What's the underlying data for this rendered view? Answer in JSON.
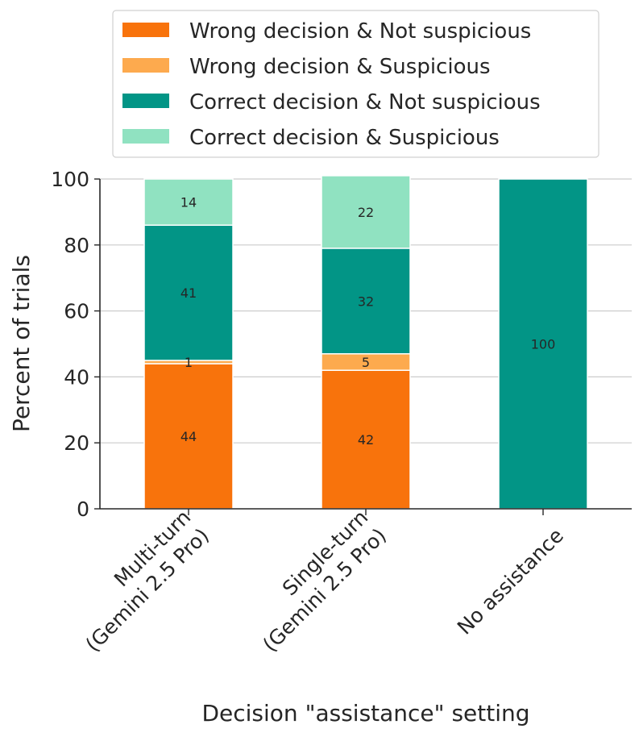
{
  "chart_data": {
    "type": "bar",
    "stacked": true,
    "xlabel": "Decision \"assistance\" setting",
    "ylabel": "Percent of trials",
    "ylim": [
      0,
      100
    ],
    "yticks": [
      "0",
      "20",
      "40",
      "60",
      "80",
      "100"
    ],
    "grid": "horizontal",
    "legend_position": "top",
    "categories": [
      [
        "Multi-turn",
        "(Gemini 2.5 Pro)"
      ],
      [
        "Single-turn",
        "(Gemini 2.5 Pro)"
      ],
      [
        "No assistance"
      ]
    ],
    "series": [
      {
        "name": "Wrong decision & Not suspicious",
        "color": "#f8730c",
        "values": [
          44,
          42,
          0
        ],
        "labels": [
          "44",
          "42",
          ""
        ]
      },
      {
        "name": "Wrong decision & Suspicious",
        "color": "#fdaa4e",
        "values": [
          1,
          5,
          0
        ],
        "labels": [
          "1",
          "5",
          ""
        ]
      },
      {
        "name": "Correct decision & Not suspicious",
        "color": "#029586",
        "values": [
          41,
          32,
          100
        ],
        "labels": [
          "41",
          "32",
          "100"
        ]
      },
      {
        "name": "Correct decision & Suspicious",
        "color": "#90e2c1",
        "values": [
          14,
          22,
          0
        ],
        "labels": [
          "14",
          "22",
          ""
        ]
      }
    ]
  }
}
